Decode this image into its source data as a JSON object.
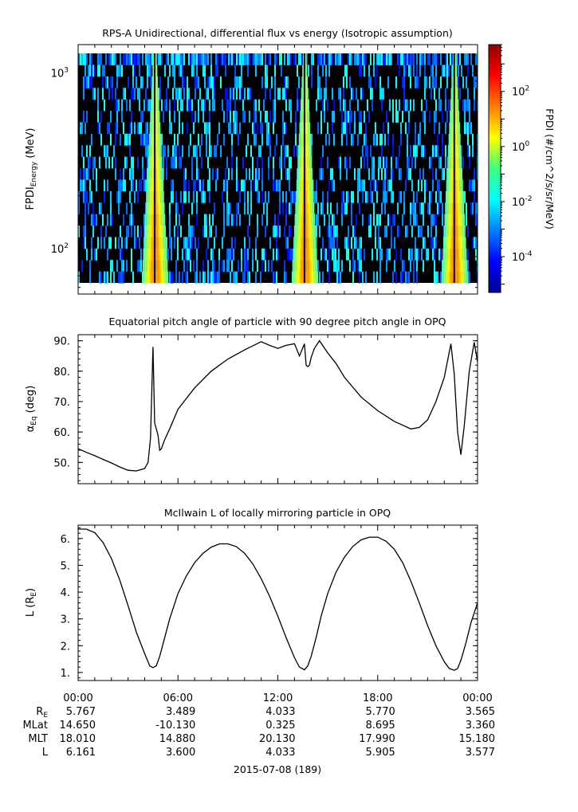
{
  "chart_data": [
    {
      "type": "heatmap",
      "title": "RPS-A Unidirectional, differential flux vs energy (Isotropic assumption)",
      "ylabel_main": "FPDI",
      "ylabel_sub": "Energy",
      "ylabel_unit": "(MeV)",
      "y_scale": "log",
      "ylim": [
        55,
        1450
      ],
      "y_ticks": [
        {
          "value": 100,
          "base": "10",
          "exp": "2"
        },
        {
          "value": 1000,
          "base": "10",
          "exp": "3"
        }
      ],
      "colorbar": {
        "label": "FPDI (#/cm^2/s/sr/MeV)",
        "scale": "log",
        "range": [
          5e-06,
          5000
        ],
        "ticks": [
          {
            "value": 100,
            "base": "10",
            "exp": "2"
          },
          {
            "value": 1,
            "base": "10",
            "exp": "0"
          },
          {
            "value": 0.01,
            "base": "10",
            "exp": "-2"
          },
          {
            "value": 0.0001,
            "base": "10",
            "exp": "-4"
          }
        ]
      },
      "flux_peaks_hours": [
        4.6,
        13.6,
        22.6
      ]
    },
    {
      "type": "line",
      "title": "Equatorial pitch angle of particle with 90 degree pitch angle in OPQ",
      "ylabel_main": "α",
      "ylabel_sub": "Eq",
      "ylabel_unit": "(deg)",
      "ylim": [
        43,
        92
      ],
      "y_ticks": [
        "50.",
        "60.",
        "70.",
        "80.",
        "90."
      ],
      "series": [
        {
          "x": [
            0,
            0.5,
            1,
            1.5,
            2,
            2.5,
            3,
            3.5,
            4,
            4.2,
            4.35,
            4.5,
            4.6,
            4.7,
            4.8,
            4.9,
            5.0,
            5.1,
            5.2,
            5.5,
            6,
            7,
            8,
            9,
            10,
            11,
            11.5,
            12,
            12.5,
            13.0,
            13.3,
            13.6,
            13.7,
            13.8,
            13.9,
            14.0,
            14.2,
            14.5,
            15.0,
            15.5,
            16,
            17,
            18,
            19,
            20,
            20.5,
            21,
            21.5,
            22,
            22.4,
            22.6,
            22.8,
            23.0,
            23.2,
            23.5,
            23.8,
            24
          ],
          "y": [
            54.5,
            53.3,
            52.2,
            51.0,
            49.8,
            48.5,
            47.4,
            47.2,
            48.0,
            50.0,
            58.0,
            88.0,
            63.0,
            61.0,
            59.0,
            54.0,
            54.5,
            56.0,
            57.5,
            61.0,
            67.5,
            74.5,
            80.0,
            84.0,
            87.0,
            89.7,
            88.5,
            87.5,
            88.5,
            89.0,
            85.0,
            89.0,
            82.0,
            81.5,
            82.0,
            84.5,
            87.5,
            90.0,
            86.0,
            82.5,
            78.0,
            71.5,
            67.0,
            63.5,
            61.0,
            61.5,
            64.0,
            70.0,
            78.0,
            89.0,
            79.0,
            60.0,
            52.5,
            62.0,
            80.0,
            89.5,
            83.0
          ]
        }
      ]
    },
    {
      "type": "line",
      "title": "McIlwain L of locally mirroring particle in OPQ",
      "ylabel_main": "L (R",
      "ylabel_sub": "E",
      "ylabel_unit": ")",
      "ylim": [
        0.7,
        6.5
      ],
      "y_ticks": [
        "1.",
        "2.",
        "3.",
        "4.",
        "5.",
        "6."
      ],
      "series": [
        {
          "x": [
            0,
            0.5,
            1,
            1.5,
            2,
            2.5,
            3,
            3.5,
            4,
            4.3,
            4.5,
            4.7,
            4.9,
            5.2,
            5.5,
            6,
            6.5,
            7,
            7.5,
            8,
            8.5,
            9,
            9.5,
            10,
            10.5,
            11,
            11.5,
            12,
            12.5,
            13,
            13.3,
            13.6,
            13.8,
            14.0,
            14.3,
            14.6,
            15,
            15.5,
            16,
            16.5,
            17,
            17.5,
            18,
            18.5,
            19,
            19.5,
            20,
            20.5,
            21,
            21.5,
            22,
            22.3,
            22.6,
            22.8,
            23.0,
            23.3,
            23.6,
            24
          ],
          "y": [
            6.35,
            6.35,
            6.22,
            5.85,
            5.25,
            4.45,
            3.5,
            2.5,
            1.7,
            1.25,
            1.18,
            1.25,
            1.6,
            2.3,
            3.0,
            3.95,
            4.6,
            5.1,
            5.45,
            5.68,
            5.8,
            5.8,
            5.7,
            5.45,
            5.05,
            4.5,
            3.85,
            3.1,
            2.3,
            1.55,
            1.2,
            1.1,
            1.25,
            1.6,
            2.3,
            3.1,
            3.95,
            4.75,
            5.3,
            5.7,
            5.95,
            6.05,
            6.05,
            5.9,
            5.6,
            5.1,
            4.4,
            3.6,
            2.75,
            2.0,
            1.4,
            1.15,
            1.08,
            1.15,
            1.45,
            2.1,
            2.85,
            3.6
          ]
        }
      ]
    }
  ],
  "x_axis": {
    "ticks": [
      "00:00",
      "06:00",
      "12:00",
      "18:00",
      "00:00"
    ],
    "row_labels": [
      {
        "main": "R",
        "sub": "E"
      },
      {
        "main": "MLat",
        "sub": ""
      },
      {
        "main": "MLT",
        "sub": ""
      },
      {
        "main": "L",
        "sub": ""
      }
    ],
    "rows": [
      [
        "5.767",
        "3.489",
        "4.033",
        "5.770",
        "3.565"
      ],
      [
        "14.650",
        "-10.130",
        "0.325",
        "8.695",
        "3.360"
      ],
      [
        "18.010",
        "14.880",
        "20.130",
        "17.990",
        "15.180"
      ],
      [
        "6.161",
        "3.600",
        "4.033",
        "5.905",
        "3.577"
      ]
    ],
    "date_label": "2015-07-08 (189)"
  }
}
